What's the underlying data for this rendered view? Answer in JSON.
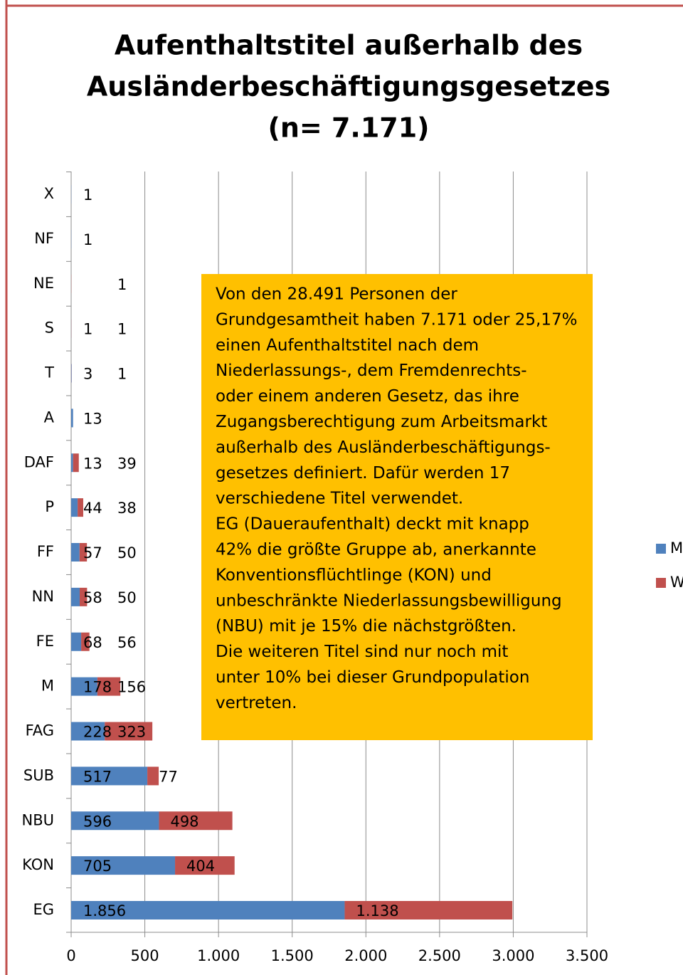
{
  "chart_data": {
    "type": "stacked_bar_horizontal",
    "title": [
      "Aufenthaltstitel außerhalb des",
      "Ausländerbeschäftigungsgesetzes",
      "(n= 7.171)"
    ],
    "categories": [
      "X",
      "NF",
      "NE",
      "S",
      "T",
      "A",
      "DAF",
      "P",
      "FF",
      "NN",
      "FE",
      "M",
      "FAG",
      "SUB",
      "NBU",
      "KON",
      "EG"
    ],
    "series": [
      {
        "name": "M",
        "color": "#4f81bd",
        "values": [
          1,
          1,
          null,
          1,
          3,
          13,
          13,
          44,
          57,
          58,
          68,
          178,
          228,
          517,
          596,
          705,
          1856
        ],
        "value_labels": [
          "1",
          "1",
          null,
          "1",
          "3",
          "13",
          "13",
          "44",
          "57",
          "58",
          "68",
          "178",
          "228",
          "517",
          "596",
          "705",
          "1.856"
        ]
      },
      {
        "name": "W",
        "color": "#c0504d",
        "values": [
          null,
          null,
          1,
          1,
          1,
          null,
          39,
          38,
          50,
          50,
          56,
          156,
          323,
          77,
          498,
          404,
          1138
        ],
        "value_labels": [
          null,
          null,
          "1",
          "1",
          "1",
          null,
          "39",
          "38",
          "50",
          "50",
          "56",
          "156",
          "323",
          "77",
          "498",
          "404",
          "1.138"
        ]
      }
    ],
    "xlim": [
      0,
      3500
    ],
    "xticks": [
      0,
      500,
      {
        "value": 1000,
        "label": "1.000"
      },
      {
        "value": 1500,
        "label": "1.500"
      },
      {
        "value": 2000,
        "label": "2.000"
      },
      {
        "value": 2500,
        "label": "2.500"
      },
      {
        "value": 3000,
        "label": "3.000"
      },
      {
        "value": 3500,
        "label": "3.500"
      }
    ],
    "grid": true,
    "legend": "right",
    "annotation": [
      "Von den 28.491 Personen der",
      "Grundgesamtheit haben 7.171 oder 25,17%",
      "einen Aufenthaltstitel  nach dem",
      "Niederlassungs-, dem Fremdenrechts-",
      "oder einem anderen Gesetz, das ihre",
      "Zugangsberechtigung zum Arbeitsmarkt",
      "außerhalb des Ausländerbeschäftigungs-",
      "gesetzes definiert. Dafür werden 17",
      "verschiedene Titel verwendet.",
      "EG (Daueraufenthalt) deckt mit knapp",
      "42% die größte Gruppe ab, anerkannte",
      "Konventionsflüchtlinge (KON) und",
      "unbeschränkte Niederlassungsbewilligung",
      "(NBU) mit je 15% die nächstgrößten.",
      "Die weiteren Titel sind nur noch mit",
      "unter 10% bei dieser Grundpopulation",
      "vertreten."
    ]
  }
}
